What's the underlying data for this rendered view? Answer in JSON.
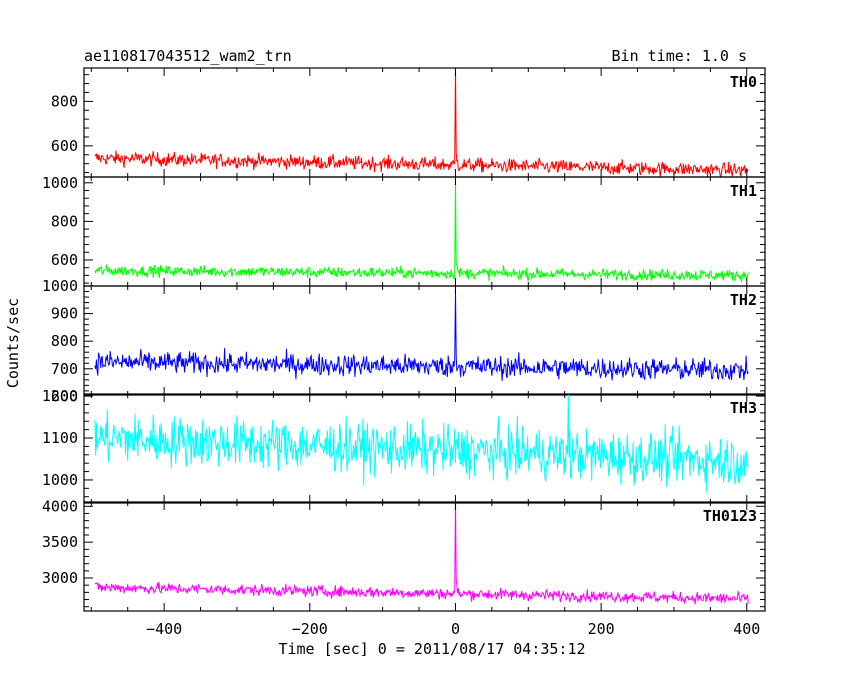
{
  "header": {
    "title": "ae110817043512_wam2_trn",
    "bin_time": "Bin time: 1.0 s"
  },
  "chart_data": {
    "type": "line",
    "title": "ae110817043512_wam2_trn",
    "subtitle": "Bin time: 1.0 s",
    "xlabel": "Time [sec] 0 = 2011/08/17 04:35:12",
    "ylabel": "Counts/sec",
    "xlim": [
      -510,
      425
    ],
    "x_ticks": [
      -400,
      -200,
      0,
      200,
      400
    ],
    "x_tick_labels": [
      "−400",
      "−200",
      "0",
      "200",
      "400"
    ],
    "x_start": -495,
    "x_end": 402,
    "bin_seconds": 1.0,
    "grid": false,
    "panels": [
      {
        "name": "TH0",
        "color": "#ff0000",
        "ylim": [
          460,
          950
        ],
        "yticks": [
          600,
          800
        ],
        "ytick_labels": [
          "600",
          "800"
        ],
        "baseline_start": 545,
        "baseline_end": 490,
        "noise": 22,
        "peak_time": 0,
        "peak_value": 960
      },
      {
        "name": "TH1",
        "color": "#00ff00",
        "ylim": [
          465,
          1030
        ],
        "yticks": [
          600,
          800,
          1000
        ],
        "ytick_labels": [
          "600",
          "800",
          "1000"
        ],
        "baseline_start": 545,
        "baseline_end": 520,
        "noise": 20,
        "peak_time": 0,
        "peak_value": 1030
      },
      {
        "name": "TH2",
        "color": "#0000ff",
        "ylim": [
          605,
          1000
        ],
        "yticks": [
          600,
          700,
          800,
          900,
          1000
        ],
        "ytick_labels": [
          "600",
          "700",
          "800",
          "900",
          "1000"
        ],
        "baseline_start": 725,
        "baseline_end": 695,
        "noise": 28,
        "peak_time": 0,
        "peak_value": 985
      },
      {
        "name": "TH3",
        "color": "#00ffff",
        "ylim": [
          945,
          1205
        ],
        "yticks": [
          1000,
          1100,
          1200
        ],
        "ytick_labels": [
          "1000",
          "1100",
          "1200"
        ],
        "baseline_start": 1100,
        "baseline_end": 1045,
        "noise": 42,
        "peak_time": 155,
        "peak_value": 1205
      },
      {
        "name": "TH0123",
        "color": "#ff00ff",
        "ylim": [
          2540,
          4060
        ],
        "yticks": [
          3000,
          3500,
          4000
        ],
        "ytick_labels": [
          "3000",
          "3500",
          "4000"
        ],
        "baseline_start": 2870,
        "baseline_end": 2710,
        "noise": 55,
        "peak_time": 0,
        "peak_value": 4100
      }
    ]
  }
}
